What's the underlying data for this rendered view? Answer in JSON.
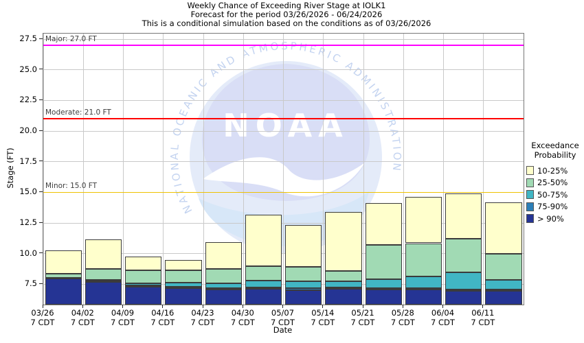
{
  "title": {
    "line1": "Weekly Chance of Exceeding River Stage at IOLK1",
    "line2": "Forecast for the period 03/26/2026 - 06/24/2026",
    "line3": "This is a conditional simulation based on the conditions as of 03/26/2026"
  },
  "axes": {
    "y_label": "Stage (FT)",
    "x_label": "Date",
    "y_tick_labels": [
      "27.5",
      "25.0",
      "22.5",
      "20.0",
      "17.5",
      "15.0",
      "12.5",
      "10.0",
      "7.5"
    ],
    "y_tick_values": [
      27.5,
      25.0,
      22.5,
      20.0,
      17.5,
      15.0,
      12.5,
      10.0,
      7.5
    ]
  },
  "thresholds": [
    {
      "name": "Major",
      "label": "Major: 27.0 FT",
      "value": 27.0,
      "color": "#FF00FF"
    },
    {
      "name": "Moderate",
      "label": "Moderate: 21.0 FT",
      "value": 21.0,
      "color": "#FF0000"
    },
    {
      "name": "Minor",
      "label": "Minor: 15.0 FT",
      "value": 15.0,
      "color": "#EEC200"
    }
  ],
  "legend": {
    "title_line1": "Exceedance",
    "title_line2": "Probability",
    "entries": [
      {
        "label": "10-25%",
        "color": "#FFFFCC"
      },
      {
        "label": "25-50%",
        "color": "#A1DAB4"
      },
      {
        "label": "50-75%",
        "color": "#41B6C4"
      },
      {
        "label": "75-90%",
        "color": "#2C7FB8"
      },
      {
        "label": "> 90%",
        "color": "#253494"
      }
    ]
  },
  "watermark": {
    "arc_text": "NATIONAL OCEANIC AND ATMOSPHERIC ADMINISTRATION",
    "logo_text": "NOAA"
  },
  "style_colors": {
    "gridline": "#c9c9c9",
    "spine": "#777777",
    "tick": "#222222",
    "bar_edge": "#3b3b3b",
    "threshold_label_text": "#3d3d3d"
  },
  "chart_data": {
    "type": "bar",
    "stacked": true,
    "title": "Weekly Chance of Exceeding River Stage at IOLK1",
    "xlabel": "Date",
    "ylabel": "Stage (FT)",
    "ylim": [
      5.84,
      27.95
    ],
    "baseline_stage": 5.84,
    "grid": true,
    "legend_position": "right",
    "bands_bottom_to_top": [
      {
        "key": "gt90",
        "label": "> 90%",
        "color": "#253494"
      },
      {
        "key": "p75_90",
        "label": "75-90%",
        "color": "#2C7FB8"
      },
      {
        "key": "p50_75",
        "label": "50-75%",
        "color": "#41B6C4"
      },
      {
        "key": "p25_50",
        "label": "25-50%",
        "color": "#A1DAB4"
      },
      {
        "key": "p10_25",
        "label": "10-25%",
        "color": "#FFFFCC"
      }
    ],
    "bars": [
      {
        "date": "03/26",
        "time": "7 CDT",
        "tops": {
          "gt90": 7.95,
          "p75_90": 8.0,
          "p50_75": 8.05,
          "p25_50": 8.35,
          "p10_25": 10.25
        }
      },
      {
        "date": "04/02",
        "time": "7 CDT",
        "tops": {
          "gt90": 7.7,
          "p75_90": 7.78,
          "p50_75": 7.85,
          "p25_50": 8.75,
          "p10_25": 11.15
        }
      },
      {
        "date": "04/09",
        "time": "7 CDT",
        "tops": {
          "gt90": 7.3,
          "p75_90": 7.4,
          "p50_75": 7.55,
          "p25_50": 8.65,
          "p10_25": 9.75
        }
      },
      {
        "date": "04/16",
        "time": "7 CDT",
        "tops": {
          "gt90": 7.2,
          "p75_90": 7.32,
          "p50_75": 7.65,
          "p25_50": 8.65,
          "p10_25": 9.5
        }
      },
      {
        "date": "04/23",
        "time": "7 CDT",
        "tops": {
          "gt90": 7.05,
          "p75_90": 7.17,
          "p50_75": 7.55,
          "p25_50": 8.75,
          "p10_25": 10.95
        }
      },
      {
        "date": "04/30",
        "time": "7 CDT",
        "tops": {
          "gt90": 7.15,
          "p75_90": 7.26,
          "p50_75": 7.8,
          "p25_50": 8.95,
          "p10_25": 13.15
        }
      },
      {
        "date": "05/07",
        "time": "7 CDT",
        "tops": {
          "gt90": 7.03,
          "p75_90": 7.16,
          "p50_75": 7.73,
          "p25_50": 8.9,
          "p10_25": 12.35
        }
      },
      {
        "date": "05/14",
        "time": "7 CDT",
        "tops": {
          "gt90": 7.1,
          "p75_90": 7.23,
          "p50_75": 7.77,
          "p25_50": 8.6,
          "p10_25": 13.4
        }
      },
      {
        "date": "05/21",
        "time": "7 CDT",
        "tops": {
          "gt90": 7.05,
          "p75_90": 7.17,
          "p50_75": 7.9,
          "p25_50": 10.7,
          "p10_25": 14.1
        }
      },
      {
        "date": "05/28",
        "time": "7 CDT",
        "tops": {
          "gt90": 7.07,
          "p75_90": 7.19,
          "p50_75": 8.15,
          "p25_50": 10.85,
          "p10_25": 14.65
        }
      },
      {
        "date": "06/04",
        "time": "7 CDT",
        "tops": {
          "gt90": 6.95,
          "p75_90": 7.05,
          "p50_75": 8.45,
          "p25_50": 11.2,
          "p10_25": 14.9
        }
      },
      {
        "date": "06/11",
        "time": "7 CDT",
        "tops": {
          "gt90": 6.97,
          "p75_90": 7.08,
          "p50_75": 7.85,
          "p25_50": 10.0,
          "p10_25": 14.2
        }
      }
    ]
  }
}
